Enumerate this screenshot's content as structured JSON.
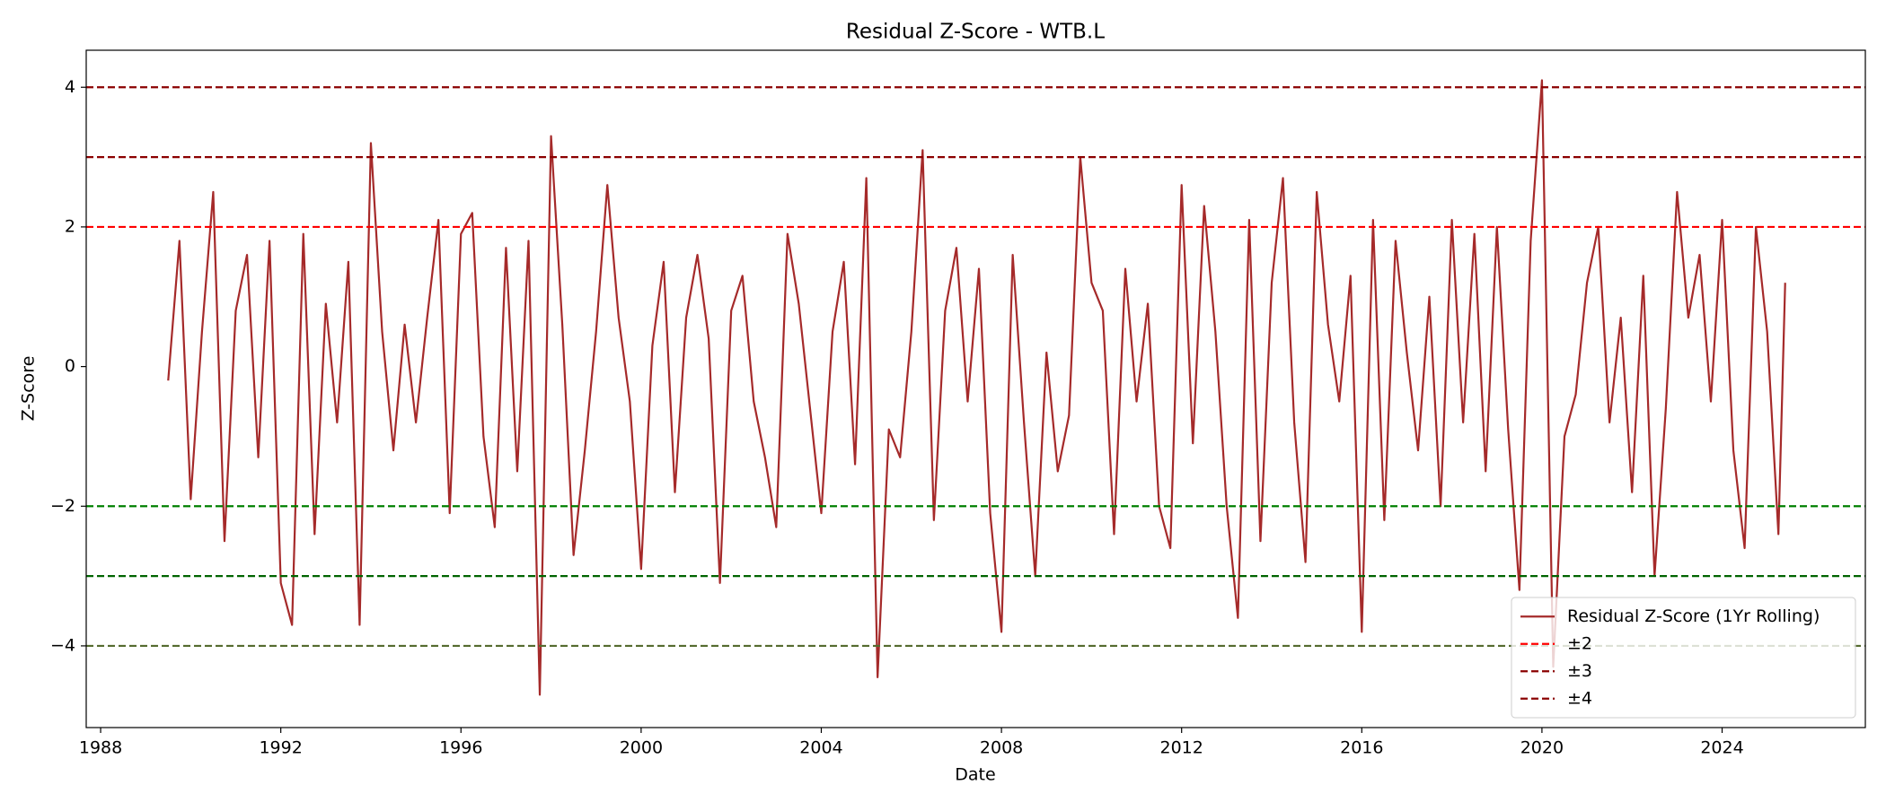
{
  "chart_data": {
    "type": "line",
    "title": "Residual Z-Score - WTB.L",
    "x_label": "Date",
    "y_label": "Z-Score",
    "x": [
      1989.5,
      1989.75,
      1990.0,
      1990.25,
      1990.5,
      1990.75,
      1991.0,
      1991.25,
      1991.5,
      1991.75,
      1992.0,
      1992.25,
      1992.5,
      1992.75,
      1993.0,
      1993.25,
      1993.5,
      1993.75,
      1994.0,
      1994.25,
      1994.5,
      1994.75,
      1995.0,
      1995.25,
      1995.5,
      1995.75,
      1996.0,
      1996.25,
      1996.5,
      1996.75,
      1997.0,
      1997.25,
      1997.5,
      1997.75,
      1998.0,
      1998.25,
      1998.5,
      1998.75,
      1999.0,
      1999.25,
      1999.5,
      1999.75,
      2000.0,
      2000.25,
      2000.5,
      2000.75,
      2001.0,
      2001.25,
      2001.5,
      2001.75,
      2002.0,
      2002.25,
      2002.5,
      2002.75,
      2003.0,
      2003.25,
      2003.5,
      2003.75,
      2004.0,
      2004.25,
      2004.5,
      2004.75,
      2005.0,
      2005.25,
      2005.5,
      2005.75,
      2006.0,
      2006.25,
      2006.5,
      2006.75,
      2007.0,
      2007.25,
      2007.5,
      2007.75,
      2008.0,
      2008.25,
      2008.5,
      2008.75,
      2009.0,
      2009.25,
      2009.5,
      2009.75,
      2010.0,
      2010.25,
      2010.5,
      2010.75,
      2011.0,
      2011.25,
      2011.5,
      2011.75,
      2012.0,
      2012.25,
      2012.5,
      2012.75,
      2013.0,
      2013.25,
      2013.5,
      2013.75,
      2014.0,
      2014.25,
      2014.5,
      2014.75,
      2015.0,
      2015.25,
      2015.5,
      2015.75,
      2016.0,
      2016.25,
      2016.5,
      2016.75,
      2017.0,
      2017.25,
      2017.5,
      2017.75,
      2018.0,
      2018.25,
      2018.5,
      2018.75,
      2019.0,
      2019.25,
      2019.5,
      2019.75,
      2020.0,
      2020.25,
      2020.5,
      2020.75,
      2021.0,
      2021.25,
      2021.5,
      2021.75,
      2022.0,
      2022.25,
      2022.5,
      2022.75,
      2023.0,
      2023.25,
      2023.5,
      2023.75,
      2024.0,
      2024.25,
      2024.5,
      2024.75,
      2025.0,
      2025.25,
      2025.4
    ],
    "series": [
      {
        "name": "Residual Z-Score (1Yr Rolling)",
        "color": "#a52a2a",
        "values": [
          -0.2,
          1.8,
          -1.9,
          0.5,
          2.5,
          -2.5,
          0.8,
          1.6,
          -1.3,
          1.8,
          -3.1,
          -3.7,
          1.9,
          -2.4,
          0.9,
          -0.8,
          1.5,
          -3.7,
          3.2,
          0.5,
          -1.2,
          0.6,
          -0.8,
          0.7,
          2.1,
          -2.1,
          1.9,
          2.2,
          -1.0,
          -2.3,
          1.7,
          -1.5,
          1.8,
          -4.7,
          3.3,
          0.6,
          -2.7,
          -1.2,
          0.5,
          2.6,
          0.7,
          -0.5,
          -2.9,
          0.3,
          1.5,
          -1.8,
          0.7,
          1.6,
          0.4,
          -3.1,
          0.8,
          1.3,
          -0.5,
          -1.3,
          -2.3,
          1.9,
          0.9,
          -0.6,
          -2.1,
          0.5,
          1.5,
          -1.4,
          2.7,
          -4.45,
          -0.9,
          -1.3,
          0.5,
          3.1,
          -2.2,
          0.8,
          1.7,
          -0.5,
          1.4,
          -2.1,
          -3.8,
          1.6,
          -0.8,
          -3.0,
          0.2,
          -1.5,
          -0.7,
          3.0,
          1.2,
          0.8,
          -2.4,
          1.4,
          -0.5,
          0.9,
          -2.0,
          -2.6,
          2.6,
          -1.1,
          2.3,
          0.5,
          -2.0,
          -3.6,
          2.1,
          -2.5,
          1.2,
          2.7,
          -0.8,
          -2.8,
          2.5,
          0.6,
          -0.5,
          1.3,
          -3.8,
          2.1,
          -2.2,
          1.8,
          0.2,
          -1.2,
          1.0,
          -2.0,
          2.1,
          -0.8,
          1.9,
          -1.5,
          2.0,
          -0.9,
          -3.2,
          1.8,
          4.1,
          -4.3,
          -1.0,
          -0.4,
          1.2,
          2.0,
          -0.8,
          0.7,
          -1.8,
          1.3,
          -3.0,
          -0.6,
          2.5,
          0.7,
          1.6,
          -0.5,
          2.1,
          -1.2,
          -2.6,
          2.0,
          0.5,
          -2.4,
          1.2
        ]
      }
    ],
    "reference_lines": [
      {
        "name": "±2",
        "values": [
          2,
          -2
        ],
        "colors": [
          "#ff0000",
          "#008000"
        ]
      },
      {
        "name": "±3",
        "values": [
          3,
          -3
        ],
        "colors": [
          "#8b0000",
          "#006400"
        ]
      },
      {
        "name": "±4",
        "values": [
          4,
          -4
        ],
        "colors": [
          "#8b0000",
          "#556b2f"
        ]
      }
    ],
    "xlim": [
      1987.68,
      2027.18
    ],
    "xticks": [
      1988,
      1992,
      1996,
      2000,
      2004,
      2008,
      2012,
      2016,
      2020,
      2024
    ],
    "ylim": [
      -5.17,
      4.53
    ],
    "yticks": [
      {
        "value": -4,
        "label": "−4"
      },
      {
        "value": -2,
        "label": "−2"
      },
      0,
      2,
      4
    ],
    "grid": false,
    "legend": "lower right"
  }
}
